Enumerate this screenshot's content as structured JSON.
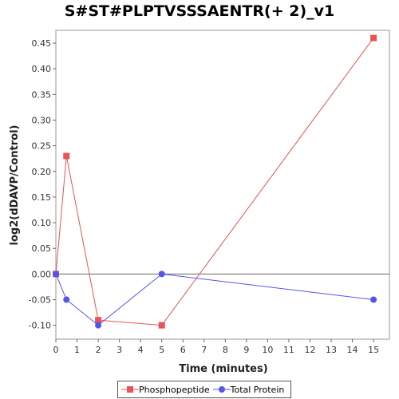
{
  "chart_data": {
    "type": "line",
    "title": "S#ST#PLPTVSSSAENTR(+ 2)_v1",
    "xlabel": "Time (minutes)",
    "ylabel": "log2(dDAVP/Control)",
    "xlim": [
      0,
      15.75
    ],
    "ylim": [
      -0.127,
      0.475
    ],
    "x_ticks": [
      0,
      1,
      2,
      3,
      4,
      5,
      6,
      7,
      8,
      9,
      10,
      11,
      12,
      13,
      14,
      15
    ],
    "y_ticks": [
      -0.1,
      -0.05,
      0.0,
      0.05,
      0.1,
      0.15,
      0.2,
      0.25,
      0.3,
      0.35,
      0.4,
      0.45
    ],
    "y_tick_labels": [
      "-0.10",
      "-0.05",
      "0.00",
      "0.05",
      "0.10",
      "0.15",
      "0.20",
      "0.25",
      "0.30",
      "0.35",
      "0.40",
      "0.45"
    ],
    "grid": false,
    "zero_line": true,
    "legend_position": "bottom-center",
    "series": [
      {
        "name": "Phosphopeptide",
        "color": "#e85454",
        "marker": "square",
        "x": [
          0,
          0.5,
          2,
          5,
          15
        ],
        "y": [
          0.0,
          0.23,
          -0.09,
          -0.1,
          0.46
        ]
      },
      {
        "name": "Total Protein",
        "color": "#5555ee",
        "marker": "circle",
        "x": [
          0,
          0.5,
          2,
          5,
          15
        ],
        "y": [
          0.0,
          -0.05,
          -0.1,
          0.0,
          -0.05
        ]
      }
    ]
  }
}
